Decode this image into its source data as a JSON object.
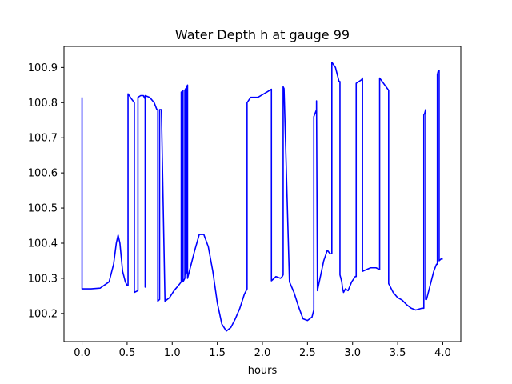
{
  "chart_data": {
    "type": "line",
    "title": "Water Depth h at gauge 99",
    "xlabel": "hours",
    "ylabel": "",
    "xlim": [
      -0.2,
      4.2
    ],
    "ylim": [
      100.12,
      100.96
    ],
    "xticks": [
      0.0,
      0.5,
      1.0,
      1.5,
      2.0,
      2.5,
      3.0,
      3.5,
      4.0
    ],
    "xtick_labels": [
      "0.0",
      "0.5",
      "1.0",
      "1.5",
      "2.0",
      "2.5",
      "3.0",
      "3.5",
      "4.0"
    ],
    "yticks": [
      100.2,
      100.3,
      100.4,
      100.5,
      100.6,
      100.7,
      100.8,
      100.9
    ],
    "ytick_labels": [
      "100.2",
      "100.3",
      "100.4",
      "100.5",
      "100.6",
      "100.7",
      "100.8",
      "100.9"
    ],
    "grid": false,
    "series": [
      {
        "color": "#0000ff",
        "x": [
          0.0,
          0.0,
          0.01,
          0.1,
          0.2,
          0.3,
          0.35,
          0.38,
          0.4,
          0.42,
          0.45,
          0.48,
          0.5,
          0.51,
          0.51,
          0.55,
          0.58,
          0.58,
          0.62,
          0.62,
          0.65,
          0.68,
          0.7,
          0.7,
          0.7,
          0.75,
          0.8,
          0.83,
          0.84,
          0.84,
          0.86,
          0.86,
          0.88,
          0.92,
          0.97,
          1.02,
          1.07,
          1.1,
          1.1,
          1.11,
          1.12,
          1.12,
          1.14,
          1.14,
          1.15,
          1.15,
          1.16,
          1.16,
          1.17,
          1.17,
          1.2,
          1.25,
          1.3,
          1.35,
          1.4,
          1.45,
          1.5,
          1.55,
          1.6,
          1.65,
          1.7,
          1.75,
          1.8,
          1.83,
          1.83,
          1.87,
          1.95,
          2.05,
          2.1,
          2.1,
          2.15,
          2.2,
          2.22,
          2.23,
          2.23,
          2.24,
          2.3,
          2.35,
          2.4,
          2.45,
          2.5,
          2.55,
          2.57,
          2.57,
          2.6,
          2.6,
          2.61,
          2.68,
          2.72,
          2.75,
          2.77,
          2.77,
          2.81,
          2.85,
          2.86,
          2.86,
          2.88,
          2.89,
          2.9,
          2.92,
          2.95,
          2.99,
          3.03,
          3.04,
          3.04,
          3.1,
          3.11,
          3.11,
          3.2,
          3.26,
          3.3,
          3.3,
          3.4,
          3.4,
          3.45,
          3.5,
          3.55,
          3.6,
          3.65,
          3.7,
          3.77,
          3.79,
          3.79,
          3.8,
          3.81,
          3.81,
          3.82,
          3.85,
          3.9,
          3.93,
          3.94,
          3.94,
          3.95,
          3.96,
          3.96,
          3.98,
          4.0
        ],
        "y": [
          100.815,
          100.27,
          100.27,
          100.27,
          100.272,
          100.29,
          100.34,
          100.4,
          100.423,
          100.4,
          100.32,
          100.29,
          100.28,
          100.28,
          100.825,
          100.81,
          100.8,
          100.26,
          100.265,
          100.815,
          100.82,
          100.82,
          100.81,
          100.275,
          100.82,
          100.815,
          100.8,
          100.78,
          100.78,
          100.235,
          100.24,
          100.78,
          100.78,
          100.235,
          100.245,
          100.265,
          100.28,
          100.29,
          100.83,
          100.83,
          100.835,
          100.29,
          100.3,
          100.835,
          100.84,
          100.31,
          100.32,
          100.845,
          100.85,
          100.3,
          100.33,
          100.38,
          100.425,
          100.425,
          100.39,
          100.32,
          100.23,
          100.17,
          100.15,
          100.16,
          100.185,
          100.215,
          100.255,
          100.27,
          100.8,
          100.815,
          100.815,
          100.83,
          100.838,
          100.293,
          100.305,
          100.3,
          100.305,
          100.31,
          100.845,
          100.84,
          100.29,
          100.26,
          100.22,
          100.185,
          100.18,
          100.19,
          100.21,
          100.76,
          100.78,
          100.805,
          100.265,
          100.35,
          100.38,
          100.37,
          100.37,
          100.915,
          100.9,
          100.86,
          100.86,
          100.31,
          100.29,
          100.27,
          100.26,
          100.27,
          100.265,
          100.29,
          100.305,
          100.305,
          100.855,
          100.865,
          100.87,
          100.32,
          100.33,
          100.33,
          100.325,
          100.87,
          100.835,
          100.285,
          100.26,
          100.245,
          100.238,
          100.225,
          100.215,
          100.21,
          100.215,
          100.215,
          100.765,
          100.77,
          100.78,
          100.24,
          100.24,
          100.27,
          100.32,
          100.34,
          100.34,
          100.88,
          100.89,
          100.892,
          100.35,
          100.355,
          100.355
        ]
      }
    ]
  }
}
